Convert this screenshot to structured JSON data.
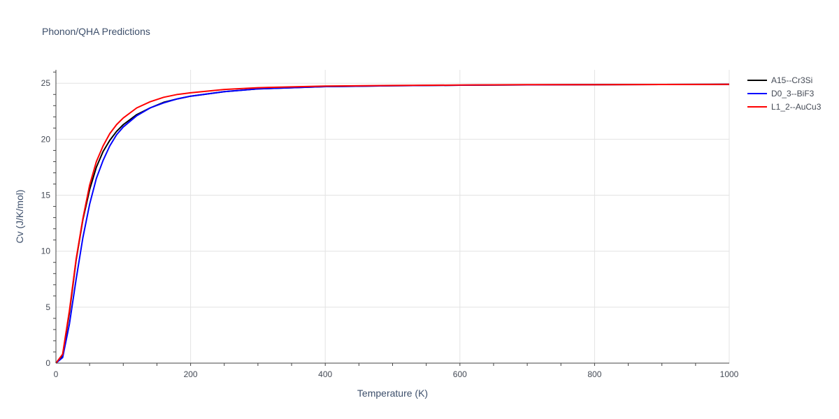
{
  "chart_data": {
    "type": "line",
    "title": "Phonon/QHA Predictions",
    "xlabel": "Temperature (K)",
    "ylabel": "Cv (J/K/mol)",
    "xlim": [
      0,
      1000
    ],
    "ylim": [
      0,
      26.2
    ],
    "xticks": [
      0,
      200,
      400,
      600,
      800,
      1000
    ],
    "yticks": [
      0,
      5,
      10,
      15,
      20,
      25
    ],
    "grid": true,
    "legend_position": "top-right",
    "series": [
      {
        "name": "A15--Cr3Si",
        "color": "#000000",
        "x": [
          0,
          10,
          20,
          30,
          40,
          50,
          60,
          70,
          80,
          90,
          100,
          120,
          140,
          160,
          180,
          200,
          250,
          300,
          400,
          500,
          600,
          700,
          800,
          900,
          1000
        ],
        "y": [
          0,
          0.7,
          4.5,
          9.2,
          12.8,
          15.5,
          17.5,
          18.9,
          19.9,
          20.7,
          21.3,
          22.2,
          22.8,
          23.3,
          23.6,
          23.85,
          24.25,
          24.5,
          24.7,
          24.78,
          24.83,
          24.86,
          24.88,
          24.89,
          24.9
        ]
      },
      {
        "name": "D0_3--BiF3",
        "color": "#0000ff",
        "x": [
          0,
          10,
          20,
          30,
          40,
          50,
          60,
          70,
          80,
          90,
          100,
          120,
          140,
          160,
          180,
          200,
          250,
          300,
          400,
          500,
          600,
          700,
          800,
          900,
          1000
        ],
        "y": [
          0,
          0.5,
          3.5,
          7.5,
          11.2,
          14.2,
          16.5,
          18.1,
          19.4,
          20.4,
          21.1,
          22.1,
          22.8,
          23.25,
          23.6,
          23.85,
          24.25,
          24.5,
          24.7,
          24.78,
          24.83,
          24.86,
          24.88,
          24.89,
          24.9
        ]
      },
      {
        "name": "L1_2--AuCu3",
        "color": "#ff0000",
        "x": [
          0,
          10,
          20,
          30,
          40,
          50,
          60,
          70,
          80,
          90,
          100,
          120,
          140,
          160,
          180,
          200,
          250,
          300,
          400,
          500,
          600,
          700,
          800,
          900,
          1000
        ],
        "y": [
          0,
          0.8,
          4.7,
          9.3,
          12.9,
          15.9,
          18.0,
          19.4,
          20.5,
          21.3,
          21.9,
          22.8,
          23.35,
          23.75,
          24.0,
          24.15,
          24.45,
          24.6,
          24.75,
          24.8,
          24.84,
          24.87,
          24.88,
          24.89,
          24.9
        ]
      }
    ]
  }
}
